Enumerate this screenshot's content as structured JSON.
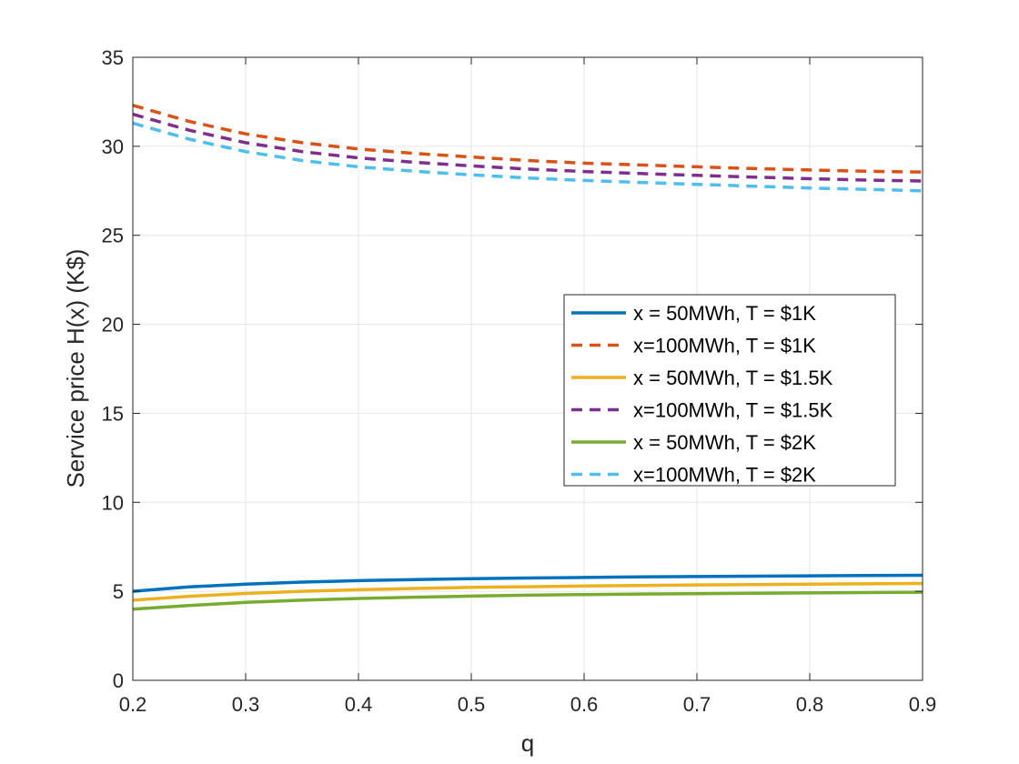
{
  "chart_data": {
    "type": "line",
    "title": "",
    "xlabel": "q",
    "ylabel": "Service price H(x) (K$)",
    "xlim": [
      0.2,
      0.9
    ],
    "ylim": [
      0,
      35
    ],
    "grid": true,
    "legend_position": "right",
    "x_ticks": [
      0.2,
      0.3,
      0.4,
      0.5,
      0.6,
      0.7,
      0.8,
      0.9
    ],
    "x_tick_labels": [
      "0.2",
      "0.3",
      "0.4",
      "0.5",
      "0.6",
      "0.7",
      "0.8",
      "0.9"
    ],
    "y_ticks": [
      0,
      5,
      10,
      15,
      20,
      25,
      30,
      35
    ],
    "y_tick_labels": [
      "0",
      "5",
      "10",
      "15",
      "20",
      "25",
      "30",
      "35"
    ],
    "x": [
      0.2,
      0.25,
      0.3,
      0.35,
      0.4,
      0.45,
      0.5,
      0.55,
      0.6,
      0.65,
      0.7,
      0.75,
      0.8,
      0.85,
      0.9
    ],
    "series": [
      {
        "name": "x = 50MWh, T = $1K",
        "color": "#0072BD",
        "dashed": false,
        "values": [
          5.0,
          5.25,
          5.4,
          5.52,
          5.6,
          5.66,
          5.71,
          5.75,
          5.78,
          5.81,
          5.83,
          5.85,
          5.87,
          5.89,
          5.9
        ]
      },
      {
        "name": "x=100MWh, T = $1K",
        "color": "#D95319",
        "dashed": true,
        "values": [
          32.3,
          31.4,
          30.7,
          30.2,
          29.85,
          29.6,
          29.4,
          29.2,
          29.05,
          28.95,
          28.85,
          28.75,
          28.67,
          28.6,
          28.55
        ]
      },
      {
        "name": "x = 50MWh, T = $1.5K",
        "color": "#EDB120",
        "dashed": false,
        "values": [
          4.5,
          4.72,
          4.88,
          5.0,
          5.09,
          5.16,
          5.22,
          5.26,
          5.3,
          5.33,
          5.36,
          5.38,
          5.4,
          5.42,
          5.44
        ]
      },
      {
        "name": "x=100MWh, T = $1.5K",
        "color": "#7E2F8E",
        "dashed": true,
        "values": [
          31.8,
          30.9,
          30.2,
          29.7,
          29.35,
          29.1,
          28.9,
          28.72,
          28.58,
          28.47,
          28.37,
          28.27,
          28.18,
          28.1,
          28.05
        ]
      },
      {
        "name": "x = 50MWh, T = $2K",
        "color": "#77AC30",
        "dashed": false,
        "values": [
          4.0,
          4.2,
          4.38,
          4.5,
          4.6,
          4.67,
          4.73,
          4.78,
          4.82,
          4.85,
          4.87,
          4.89,
          4.91,
          4.93,
          4.95
        ]
      },
      {
        "name": "x=100MWh, T = $2K",
        "color": "#4DBEEE",
        "dashed": true,
        "values": [
          31.3,
          30.4,
          29.7,
          29.2,
          28.85,
          28.6,
          28.4,
          28.22,
          28.08,
          27.97,
          27.86,
          27.76,
          27.66,
          27.58,
          27.5
        ]
      }
    ]
  }
}
